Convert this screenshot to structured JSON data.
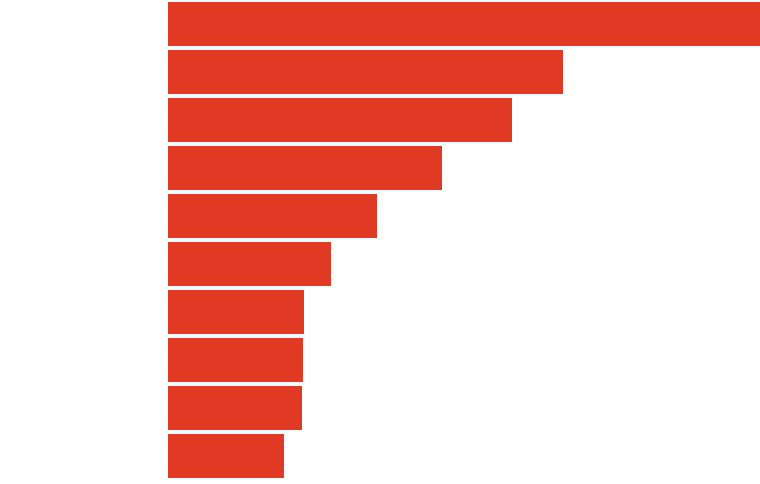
{
  "chart_data": {
    "type": "barh",
    "categories": [
      null,
      null,
      null,
      null,
      null,
      null,
      null,
      null,
      null,
      null
    ],
    "values": [
      592,
      395,
      344,
      274,
      209,
      163,
      136,
      135,
      134,
      116
    ],
    "color": "#e03a24",
    "xlim": [
      0,
      592
    ]
  }
}
